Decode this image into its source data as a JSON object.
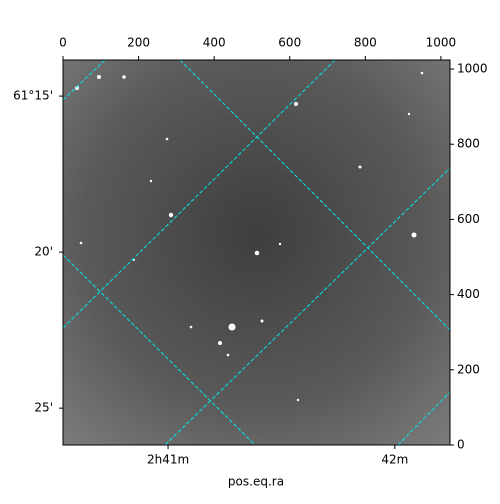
{
  "chart_data": {
    "type": "image",
    "xlabel": "pos.eq.ra",
    "xlim": [
      0,
      1024
    ],
    "ylim": [
      0,
      1024
    ],
    "xticks": [
      0,
      200,
      400,
      600,
      800,
      1000
    ],
    "yticks": [
      0,
      200,
      400,
      600,
      800,
      1000
    ],
    "world_xticks": [
      {
        "value": 278,
        "label": "2h41m"
      },
      {
        "value": 878,
        "label": "42m"
      }
    ],
    "world_yticks": [
      {
        "value": 928,
        "label": "61°15'"
      },
      {
        "value": 513,
        "label": "20'"
      },
      {
        "value": 98,
        "label": "25'"
      }
    ],
    "grid": true,
    "grid_color": "#00e5e5"
  }
}
